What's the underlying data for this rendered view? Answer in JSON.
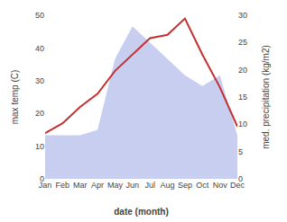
{
  "chart_data": {
    "type": "line",
    "xlabel": "date (month)",
    "ylabel": "max temp (C)",
    "y2label": "med. precipitation (kg/m2)",
    "categories": [
      "Jan",
      "Feb",
      "Mar",
      "Apr",
      "May",
      "Jun",
      "Jul",
      "Aug",
      "Sep",
      "Oct",
      "Nov",
      "Dec"
    ],
    "series": [
      {
        "type": "area",
        "axis": "y2",
        "color": "#c8cef0",
        "values": [
          8,
          8,
          8,
          9,
          22,
          28,
          25,
          22,
          19,
          17,
          19,
          8
        ]
      },
      {
        "type": "line",
        "color": "#c43030",
        "values": [
          14,
          17,
          22,
          26,
          33,
          38,
          43,
          44,
          49,
          38,
          28,
          16
        ]
      }
    ],
    "ylim": [
      0,
      50
    ],
    "yticks": [
      0,
      10,
      20,
      30,
      40,
      50
    ],
    "y2lim": [
      0,
      30
    ],
    "y2ticks": [
      0,
      5,
      10,
      15,
      20,
      25,
      30
    ],
    "grid": false
  }
}
